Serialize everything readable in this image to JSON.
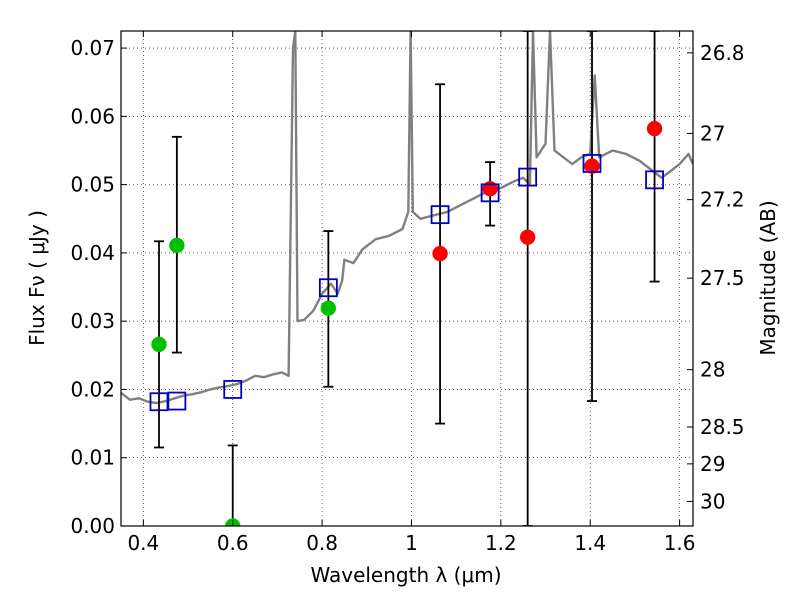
{
  "chart_data": {
    "type": "scatter",
    "xlabel": "Wavelength  λ (μm)",
    "ylabel": "Flux  Fν  ( μJy )",
    "ylabel_right": "Magnitude (AB)",
    "xlim": [
      0.35,
      1.63
    ],
    "ylim": [
      0.0,
      0.0725
    ],
    "grid": true,
    "x_ticks": [
      0.4,
      0.6,
      0.8,
      1.0,
      1.2,
      1.4,
      1.6
    ],
    "x_tick_labels": [
      "0.4",
      "0.6",
      "0.8",
      "1",
      "1.2",
      "1.4",
      "1.6"
    ],
    "y_ticks": [
      0.0,
      0.01,
      0.02,
      0.03,
      0.04,
      0.05,
      0.06,
      0.07
    ],
    "y_tick_labels": [
      "0.00",
      "0.01",
      "0.02",
      "0.03",
      "0.04",
      "0.05",
      "0.06",
      "0.07"
    ],
    "mag_ticks": [
      {
        "label": "26.8",
        "flux": 0.0693
      },
      {
        "label": "27",
        "flux": 0.0575
      },
      {
        "label": "27.2",
        "flux": 0.0478
      },
      {
        "label": "27.5",
        "flux": 0.0363
      },
      {
        "label": "28",
        "flux": 0.0229
      },
      {
        "label": "28.5",
        "flux": 0.0145
      },
      {
        "label": "29",
        "flux": 0.0091
      },
      {
        "label": "30",
        "flux": 0.0036
      }
    ],
    "colors": {
      "model": "#808080",
      "green": "#00c000",
      "red": "#ff0000",
      "square": "#0000c0",
      "errorbar": "#000000"
    },
    "model_sed": [
      [
        0.35,
        0.0195
      ],
      [
        0.37,
        0.0185
      ],
      [
        0.39,
        0.0187
      ],
      [
        0.41,
        0.0182
      ],
      [
        0.43,
        0.018
      ],
      [
        0.45,
        0.0183
      ],
      [
        0.47,
        0.0187
      ],
      [
        0.49,
        0.0191
      ],
      [
        0.51,
        0.0193
      ],
      [
        0.53,
        0.0196
      ],
      [
        0.55,
        0.02
      ],
      [
        0.57,
        0.0203
      ],
      [
        0.59,
        0.0205
      ],
      [
        0.61,
        0.0208
      ],
      [
        0.63,
        0.0213
      ],
      [
        0.65,
        0.022
      ],
      [
        0.67,
        0.0218
      ],
      [
        0.69,
        0.0222
      ],
      [
        0.71,
        0.0225
      ],
      [
        0.725,
        0.022
      ],
      [
        0.735,
        0.07
      ],
      [
        0.74,
        0.0725
      ],
      [
        0.745,
        0.03
      ],
      [
        0.76,
        0.0302
      ],
      [
        0.78,
        0.0315
      ],
      [
        0.8,
        0.034
      ],
      [
        0.82,
        0.0355
      ],
      [
        0.835,
        0.034
      ],
      [
        0.845,
        0.036
      ],
      [
        0.85,
        0.039
      ],
      [
        0.87,
        0.0385
      ],
      [
        0.89,
        0.0405
      ],
      [
        0.92,
        0.042
      ],
      [
        0.95,
        0.0425
      ],
      [
        0.98,
        0.0435
      ],
      [
        0.993,
        0.046
      ],
      [
        0.998,
        0.0725
      ],
      [
        1.003,
        0.046
      ],
      [
        1.02,
        0.045
      ],
      [
        1.05,
        0.0455
      ],
      [
        1.08,
        0.046
      ],
      [
        1.11,
        0.047
      ],
      [
        1.14,
        0.048
      ],
      [
        1.17,
        0.049
      ],
      [
        1.2,
        0.0495
      ],
      [
        1.23,
        0.0505
      ],
      [
        1.25,
        0.051
      ],
      [
        1.265,
        0.05
      ],
      [
        1.272,
        0.0725
      ],
      [
        1.28,
        0.054
      ],
      [
        1.3,
        0.056
      ],
      [
        1.31,
        0.0725
      ],
      [
        1.32,
        0.055
      ],
      [
        1.34,
        0.054
      ],
      [
        1.36,
        0.053
      ],
      [
        1.38,
        0.054
      ],
      [
        1.4,
        0.0545
      ],
      [
        1.41,
        0.066
      ],
      [
        1.42,
        0.054
      ],
      [
        1.45,
        0.055
      ],
      [
        1.48,
        0.0545
      ],
      [
        1.51,
        0.0535
      ],
      [
        1.54,
        0.052
      ],
      [
        1.56,
        0.051
      ],
      [
        1.58,
        0.052
      ],
      [
        1.6,
        0.053
      ],
      [
        1.62,
        0.0545
      ],
      [
        1.63,
        0.053
      ]
    ],
    "model_squares": [
      {
        "x": 0.435,
        "y": 0.0182
      },
      {
        "x": 0.475,
        "y": 0.0183
      },
      {
        "x": 0.6,
        "y": 0.02
      },
      {
        "x": 0.814,
        "y": 0.0349
      },
      {
        "x": 1.064,
        "y": 0.0456
      },
      {
        "x": 1.176,
        "y": 0.0488
      },
      {
        "x": 1.26,
        "y": 0.0511
      },
      {
        "x": 1.404,
        "y": 0.0531
      },
      {
        "x": 1.544,
        "y": 0.0507
      }
    ],
    "observed": [
      {
        "x": 0.435,
        "y": 0.0266,
        "yerr_low": 0.0151,
        "yerr_high": 0.0151,
        "color": "green"
      },
      {
        "x": 0.475,
        "y": 0.0411,
        "yerr_low": 0.0157,
        "yerr_high": 0.0159,
        "color": "green"
      },
      {
        "x": 0.6,
        "y": 0.0,
        "yerr_low": 0.0,
        "yerr_high": 0.0118,
        "color": "green"
      },
      {
        "x": 0.814,
        "y": 0.0319,
        "yerr_low": 0.0115,
        "yerr_high": 0.0113,
        "color": "green"
      },
      {
        "x": 1.064,
        "y": 0.0399,
        "yerr_low": 0.0249,
        "yerr_high": 0.0248,
        "color": "red"
      },
      {
        "x": 1.176,
        "y": 0.0494,
        "yerr_low": 0.0054,
        "yerr_high": 0.0039,
        "color": "red"
      },
      {
        "x": 1.26,
        "y": 0.0423,
        "yerr_low": 0.0423,
        "yerr_high": 0.0302,
        "color": "red"
      },
      {
        "x": 1.404,
        "y": 0.0527,
        "yerr_low": 0.0344,
        "yerr_high": 0.0198,
        "color": "red"
      },
      {
        "x": 1.544,
        "y": 0.0582,
        "yerr_low": 0.0224,
        "yerr_high": 0.0143,
        "color": "red"
      }
    ]
  }
}
